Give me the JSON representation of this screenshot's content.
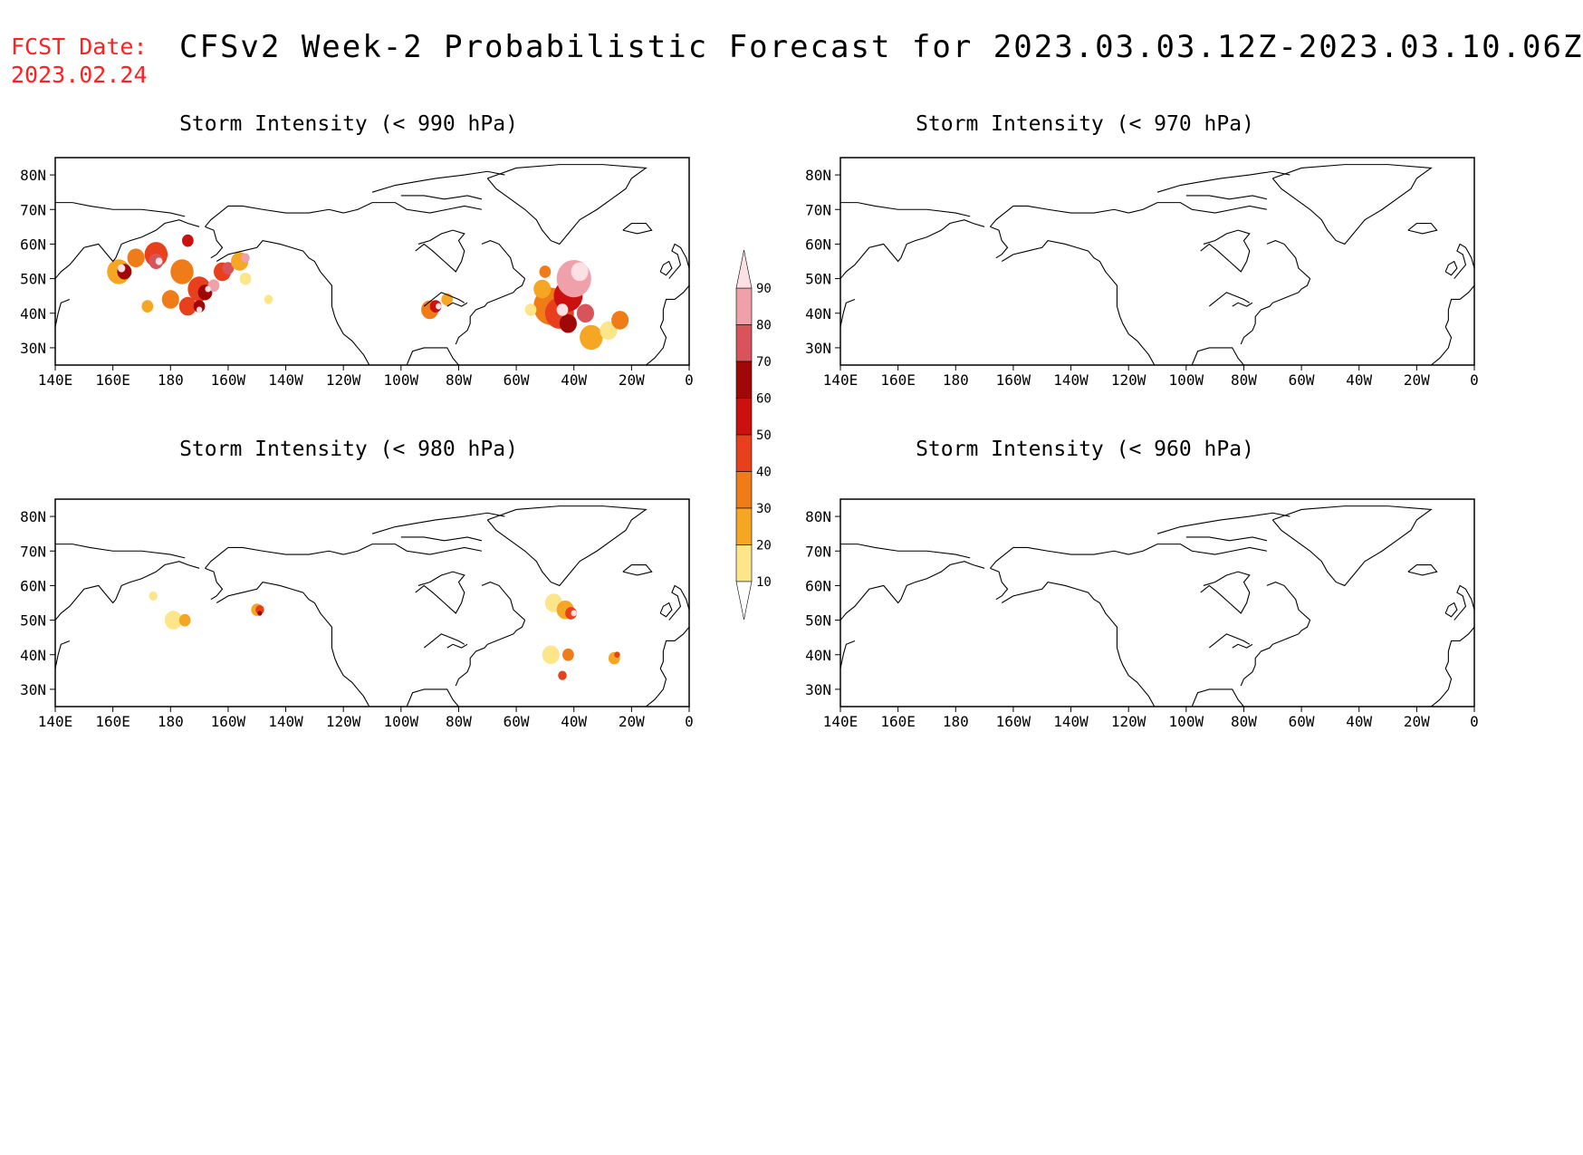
{
  "header": {
    "fcst_label": "FCST Date:",
    "fcst_date": "2023.02.24",
    "title": "CFSv2 Week-2 Probabilistic Forecast for 2023.03.03.12Z-2023.03.10.06Z"
  },
  "axes": {
    "x_ticks": [
      "140E",
      "160E",
      "180",
      "160W",
      "140W",
      "120W",
      "100W",
      "80W",
      "60W",
      "40W",
      "20W",
      "0"
    ],
    "y_ticks": [
      "80N",
      "70N",
      "60N",
      "50N",
      "40N",
      "30N"
    ]
  },
  "panels": [
    {
      "id": "p990",
      "title": "Storm Intensity (< 990 hPa)"
    },
    {
      "id": "p970",
      "title": "Storm Intensity (< 970 hPa)"
    },
    {
      "id": "p980",
      "title": "Storm Intensity (< 980 hPa)"
    },
    {
      "id": "p960",
      "title": "Storm Intensity (< 960 hPa)"
    }
  ],
  "colorbar": {
    "levels": [
      "10",
      "20",
      "30",
      "40",
      "50",
      "60",
      "70",
      "80",
      "90"
    ],
    "colors": [
      "#fff7c0",
      "#fde58a",
      "#f5a623",
      "#f07c18",
      "#e8401c",
      "#cc1010",
      "#a00808",
      "#d9545a",
      "#f0a0a8",
      "#fde0e4"
    ]
  },
  "map_colors": {
    "land_line": "#000000"
  }
}
